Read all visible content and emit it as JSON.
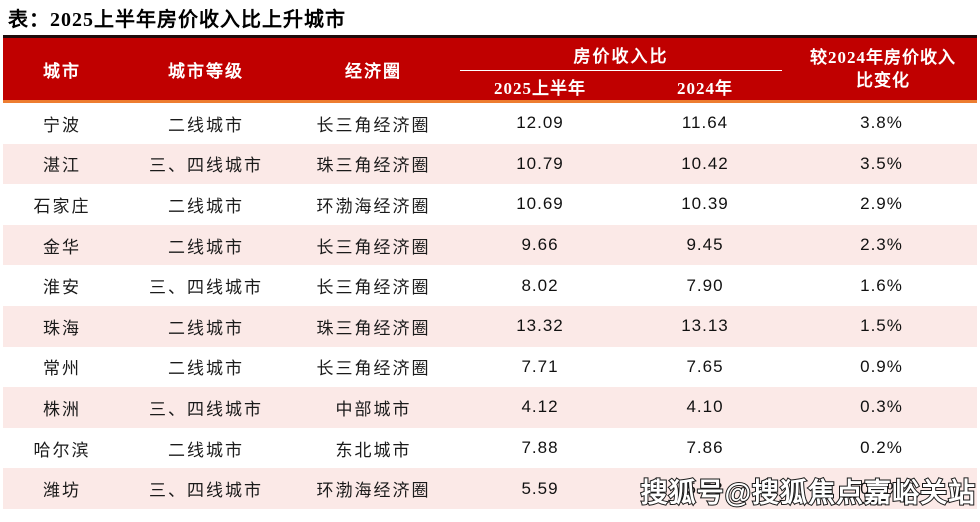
{
  "title": "表：2025上半年房价收入比上升城市",
  "table": {
    "columns": {
      "city": "城市",
      "tier": "城市等级",
      "circle": "经济圈",
      "ratio_group": "房价收入比",
      "ratio_2025_h1": "2025上半年",
      "ratio_2024": "2024年",
      "change": "较2024年房价收入\n比变化"
    },
    "rows": [
      {
        "city": "宁波",
        "tier": "二线城市",
        "circle": "长三角经济圈",
        "ratio_2025_h1": "12.09",
        "ratio_2024": "11.64",
        "change": "3.8%"
      },
      {
        "city": "湛江",
        "tier": "三、四线城市",
        "circle": "珠三角经济圈",
        "ratio_2025_h1": "10.79",
        "ratio_2024": "10.42",
        "change": "3.5%"
      },
      {
        "city": "石家庄",
        "tier": "二线城市",
        "circle": "环渤海经济圈",
        "ratio_2025_h1": "10.69",
        "ratio_2024": "10.39",
        "change": "2.9%"
      },
      {
        "city": "金华",
        "tier": "二线城市",
        "circle": "长三角经济圈",
        "ratio_2025_h1": "9.66",
        "ratio_2024": "9.45",
        "change": "2.3%"
      },
      {
        "city": "淮安",
        "tier": "三、四线城市",
        "circle": "长三角经济圈",
        "ratio_2025_h1": "8.02",
        "ratio_2024": "7.90",
        "change": "1.6%"
      },
      {
        "city": "珠海",
        "tier": "二线城市",
        "circle": "珠三角经济圈",
        "ratio_2025_h1": "13.32",
        "ratio_2024": "13.13",
        "change": "1.5%"
      },
      {
        "city": "常州",
        "tier": "二线城市",
        "circle": "长三角经济圈",
        "ratio_2025_h1": "7.71",
        "ratio_2024": "7.65",
        "change": "0.9%"
      },
      {
        "city": "株洲",
        "tier": "三、四线城市",
        "circle": "中部城市",
        "ratio_2025_h1": "4.12",
        "ratio_2024": "4.10",
        "change": "0.3%"
      },
      {
        "city": "哈尔滨",
        "tier": "二线城市",
        "circle": "东北城市",
        "ratio_2025_h1": "7.88",
        "ratio_2024": "7.86",
        "change": "0.2%"
      },
      {
        "city": "潍坊",
        "tier": "三、四线城市",
        "circle": "环渤海经济圈",
        "ratio_2025_h1": "5.59",
        "ratio_2024": "5.58",
        "change": "0.2%"
      }
    ]
  },
  "watermark": "搜狐号@搜狐焦点嘉峪关站",
  "colors": {
    "header_bg": "#C00000",
    "header_top_border": "#1F0B0B",
    "header_bottom_accent": "#ED7D31",
    "alt_row_bg": "#FBE9E7",
    "header_text": "#FFFFFF",
    "body_text": "#1A1A1A"
  }
}
